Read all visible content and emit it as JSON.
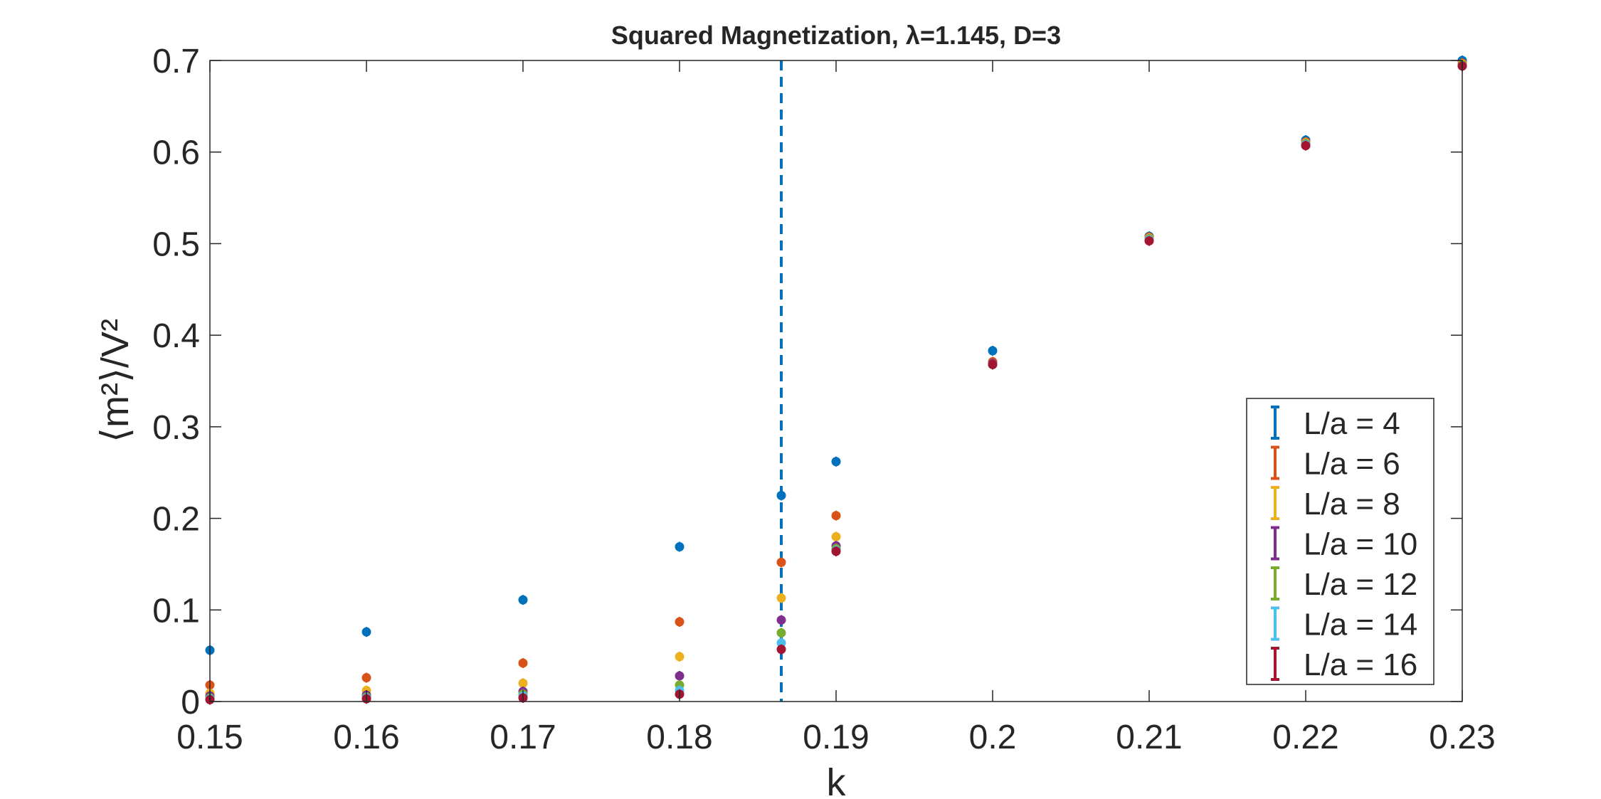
{
  "chart_data": {
    "type": "scatter",
    "title": "Squared Magnetization, λ=1.145, D=3",
    "xlabel": "k",
    "ylabel": "⟨m²⟩/V²",
    "xlim": [
      0.15,
      0.23
    ],
    "ylim": [
      0,
      0.7
    ],
    "x_ticks": [
      "0.15",
      "0.16",
      "0.17",
      "0.18",
      "0.19",
      "0.2",
      "0.21",
      "0.22",
      "0.23"
    ],
    "y_ticks": [
      "0",
      "0.1",
      "0.2",
      "0.3",
      "0.4",
      "0.5",
      "0.6",
      "0.7"
    ],
    "grid": false,
    "legend_position": "lower-right",
    "vertical_reference_line": {
      "x": 0.1865,
      "style": "dashed",
      "color": "#0072BD"
    },
    "x": [
      0.15,
      0.16,
      0.17,
      0.18,
      0.1865,
      0.19,
      0.2,
      0.21,
      0.22,
      0.23
    ],
    "series": [
      {
        "name": "L/a = 4",
        "color": "#0072BD",
        "values": [
          0.056,
          0.076,
          0.111,
          0.169,
          0.225,
          0.262,
          0.383,
          0.508,
          0.613,
          0.7
        ]
      },
      {
        "name": "L/a = 6",
        "color": "#D95319",
        "values": [
          0.018,
          0.026,
          0.042,
          0.087,
          0.152,
          0.203,
          0.371,
          0.507,
          0.611,
          0.697
        ]
      },
      {
        "name": "L/a = 8",
        "color": "#EDB120",
        "values": [
          0.009,
          0.012,
          0.02,
          0.049,
          0.113,
          0.18,
          0.369,
          0.506,
          0.61,
          0.696
        ]
      },
      {
        "name": "L/a = 10",
        "color": "#7E2F8E",
        "values": [
          0.006,
          0.007,
          0.011,
          0.028,
          0.089,
          0.17,
          0.369,
          0.505,
          0.609,
          0.695
        ]
      },
      {
        "name": "L/a = 12",
        "color": "#77AC30",
        "values": [
          0.004,
          0.005,
          0.008,
          0.018,
          0.075,
          0.167,
          0.368,
          0.505,
          0.609,
          0.695
        ]
      },
      {
        "name": "L/a = 14",
        "color": "#4DBEEE",
        "values": [
          0.003,
          0.004,
          0.006,
          0.012,
          0.064,
          0.165,
          0.368,
          0.504,
          0.608,
          0.694
        ]
      },
      {
        "name": "L/a = 16",
        "color": "#A2142F",
        "values": [
          0.002,
          0.003,
          0.004,
          0.008,
          0.057,
          0.164,
          0.368,
          0.503,
          0.607,
          0.694
        ]
      }
    ]
  }
}
